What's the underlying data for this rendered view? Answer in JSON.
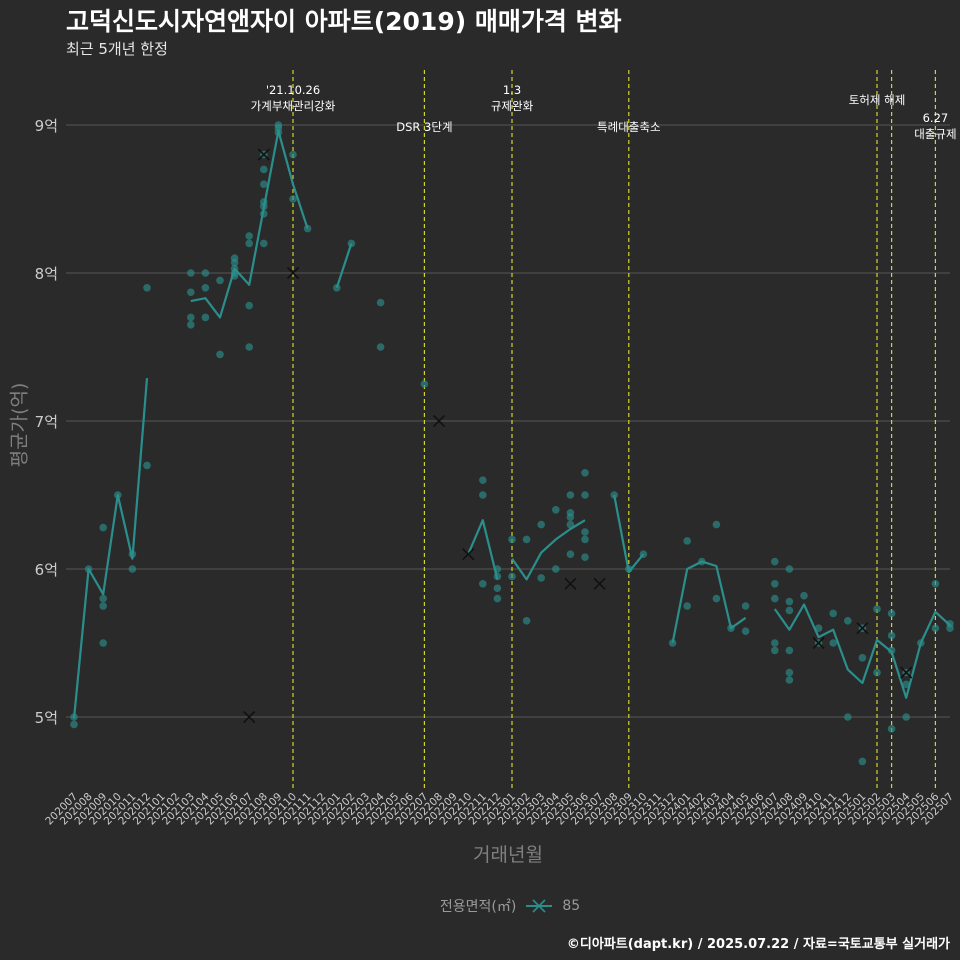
{
  "title": "고덕신도시자연앤자이 아파트(2019) 매매가격 변화",
  "subtitle": "최근 5개년 한정",
  "caption": "©디아파트(dapt.kr) / 2025.07.22 / 자료=국토교통부 실거래가",
  "colors": {
    "background": "#2b2a2a",
    "grid": "#555555",
    "series": "#2a8f8c",
    "vline": "#d4d42a",
    "axis_text": "#cccccc",
    "axis_title": "#7f7f7f"
  },
  "chart_data": {
    "type": "line",
    "title": "고덕신도시자연앤자이 아파트(2019) 매매가격 변화",
    "xlabel": "거래년월",
    "ylabel": "평균가(억)",
    "ylim": [
      4.5,
      9.45
    ],
    "yticks": [
      5,
      6,
      7,
      8,
      9
    ],
    "ytick_labels": [
      "5억",
      "6억",
      "7억",
      "8억",
      "9억"
    ],
    "categories": [
      "202007",
      "202008",
      "202009",
      "202010",
      "202011",
      "202012",
      "202101",
      "202102",
      "202103",
      "202104",
      "202105",
      "202106",
      "202107",
      "202108",
      "202109",
      "202110",
      "202111",
      "202112",
      "202201",
      "202202",
      "202203",
      "202204",
      "202205",
      "202206",
      "202207",
      "202208",
      "202209",
      "202210",
      "202211",
      "202212",
      "202301",
      "202302",
      "202303",
      "202304",
      "202305",
      "202306",
      "202307",
      "202308",
      "202309",
      "202310",
      "202311",
      "202312",
      "202401",
      "202402",
      "202403",
      "202404",
      "202405",
      "202406",
      "202407",
      "202408",
      "202409",
      "202410",
      "202411",
      "202412",
      "202501",
      "202502",
      "202503",
      "202504",
      "202505",
      "202506",
      "202507"
    ],
    "legend": {
      "title": "전용면적(㎡)",
      "entries": [
        "85"
      ]
    },
    "series": [
      {
        "name": "85",
        "line_segments": [
          [
            [
              0,
              4.99
            ],
            [
              1,
              6.0
            ],
            [
              2,
              5.83
            ],
            [
              3,
              6.5
            ],
            [
              4,
              6.07
            ],
            [
              5,
              7.29
            ]
          ],
          [
            [
              8,
              7.81
            ],
            [
              9,
              7.83
            ],
            [
              10,
              7.7
            ],
            [
              11,
              8.03
            ],
            [
              12,
              7.92
            ],
            [
              13,
              8.44
            ],
            [
              14,
              8.96
            ],
            [
              15,
              8.6
            ],
            [
              16,
              8.3
            ]
          ],
          [
            [
              18,
              7.9
            ],
            [
              19,
              8.2
            ]
          ],
          [
            [
              27,
              6.1
            ],
            [
              28,
              6.33
            ],
            [
              29,
              5.93
            ]
          ],
          [
            [
              30,
              6.07
            ],
            [
              31,
              5.93
            ],
            [
              32,
              6.11
            ],
            [
              33,
              6.2
            ],
            [
              34,
              6.27
            ],
            [
              35,
              6.33
            ]
          ],
          [
            [
              37,
              6.5
            ],
            [
              38,
              5.98
            ],
            [
              39,
              6.1
            ]
          ],
          [
            [
              41,
              5.5
            ],
            [
              42,
              6.0
            ],
            [
              43,
              6.05
            ],
            [
              44,
              6.02
            ],
            [
              45,
              5.6
            ],
            [
              46,
              5.67
            ]
          ],
          [
            [
              48,
              5.73
            ],
            [
              49,
              5.59
            ],
            [
              50,
              5.76
            ],
            [
              51,
              5.54
            ],
            [
              52,
              5.59
            ],
            [
              53,
              5.32
            ],
            [
              54,
              5.23
            ],
            [
              55,
              5.52
            ],
            [
              56,
              5.44
            ],
            [
              57,
              5.13
            ],
            [
              58,
              5.5
            ],
            [
              59,
              5.71
            ],
            [
              60,
              5.62
            ]
          ]
        ],
        "points": [
          [
            0,
            5.0
          ],
          [
            0,
            4.95
          ],
          [
            1,
            6.0
          ],
          [
            2,
            5.5
          ],
          [
            2,
            5.75
          ],
          [
            2,
            5.8
          ],
          [
            2,
            6.28
          ],
          [
            3,
            6.5
          ],
          [
            4,
            6.0
          ],
          [
            4,
            6.1
          ],
          [
            5,
            7.9
          ],
          [
            5,
            6.7
          ],
          [
            8,
            8.0
          ],
          [
            8,
            7.87
          ],
          [
            8,
            7.7
          ],
          [
            8,
            7.65
          ],
          [
            9,
            8.0
          ],
          [
            9,
            7.9
          ],
          [
            9,
            7.7
          ],
          [
            10,
            7.45
          ],
          [
            10,
            7.95
          ],
          [
            11,
            8.1
          ],
          [
            11,
            8.07
          ],
          [
            11,
            8.0
          ],
          [
            11,
            8.03
          ],
          [
            11,
            7.98
          ],
          [
            12,
            8.25
          ],
          [
            12,
            8.2
          ],
          [
            12,
            7.78
          ],
          [
            12,
            7.5
          ],
          [
            13,
            8.8
          ],
          [
            13,
            8.7
          ],
          [
            13,
            8.6
          ],
          [
            13,
            8.48
          ],
          [
            13,
            8.45
          ],
          [
            13,
            8.4
          ],
          [
            13,
            8.2
          ],
          [
            14,
            9.0
          ],
          [
            14,
            8.98
          ],
          [
            14,
            8.95
          ],
          [
            15,
            8.8
          ],
          [
            15,
            8.5
          ],
          [
            16,
            8.3
          ],
          [
            18,
            7.9
          ],
          [
            19,
            8.2
          ],
          [
            21,
            7.8
          ],
          [
            21,
            7.5
          ],
          [
            24,
            7.25
          ],
          [
            28,
            6.6
          ],
          [
            28,
            6.5
          ],
          [
            28,
            5.9
          ],
          [
            29,
            6.0
          ],
          [
            29,
            5.95
          ],
          [
            29,
            5.87
          ],
          [
            29,
            5.8
          ],
          [
            30,
            6.2
          ],
          [
            30,
            5.95
          ],
          [
            31,
            6.2
          ],
          [
            31,
            5.65
          ],
          [
            32,
            6.3
          ],
          [
            32,
            5.94
          ],
          [
            33,
            6.4
          ],
          [
            33,
            6.0
          ],
          [
            34,
            6.5
          ],
          [
            34,
            6.38
          ],
          [
            34,
            6.35
          ],
          [
            34,
            6.3
          ],
          [
            34,
            6.1
          ],
          [
            35,
            6.65
          ],
          [
            35,
            6.5
          ],
          [
            35,
            6.25
          ],
          [
            35,
            6.2
          ],
          [
            35,
            6.08
          ],
          [
            37,
            6.5
          ],
          [
            38,
            6.0
          ],
          [
            39,
            6.1
          ],
          [
            41,
            5.5
          ],
          [
            42,
            6.19
          ],
          [
            42,
            5.75
          ],
          [
            43,
            6.05
          ],
          [
            44,
            6.3
          ],
          [
            44,
            5.8
          ],
          [
            45,
            5.6
          ],
          [
            46,
            5.58
          ],
          [
            46,
            5.75
          ],
          [
            48,
            6.05
          ],
          [
            48,
            5.9
          ],
          [
            48,
            5.8
          ],
          [
            48,
            5.5
          ],
          [
            48,
            5.45
          ],
          [
            49,
            6.0
          ],
          [
            49,
            5.78
          ],
          [
            49,
            5.72
          ],
          [
            49,
            5.45
          ],
          [
            49,
            5.3
          ],
          [
            49,
            5.25
          ],
          [
            50,
            5.82
          ],
          [
            51,
            5.6
          ],
          [
            51,
            5.5
          ],
          [
            52,
            5.7
          ],
          [
            52,
            5.5
          ],
          [
            53,
            5.65
          ],
          [
            53,
            5.0
          ],
          [
            54,
            5.6
          ],
          [
            54,
            5.4
          ],
          [
            54,
            4.7
          ],
          [
            55,
            5.73
          ],
          [
            55,
            5.3
          ],
          [
            56,
            5.7
          ],
          [
            56,
            5.55
          ],
          [
            56,
            5.45
          ],
          [
            56,
            4.92
          ],
          [
            57,
            5.3
          ],
          [
            57,
            5.22
          ],
          [
            57,
            5.0
          ],
          [
            58,
            5.5
          ],
          [
            59,
            5.9
          ],
          [
            59,
            5.6
          ],
          [
            60,
            5.63
          ],
          [
            60,
            5.6
          ]
        ],
        "cross_points": [
          [
            12,
            5.0
          ],
          [
            13,
            8.8
          ],
          [
            15,
            8.0
          ],
          [
            25,
            7.0
          ],
          [
            27,
            6.1
          ],
          [
            34,
            5.9
          ],
          [
            36,
            5.9
          ],
          [
            51,
            5.5
          ],
          [
            54,
            5.6
          ],
          [
            57,
            5.3
          ]
        ]
      }
    ],
    "annotations": [
      {
        "x_index": 15,
        "lines": [
          "'21.10.26",
          "가계부채관리강화"
        ],
        "label_level": 0
      },
      {
        "x_index": 24,
        "lines": [
          "DSR 3단계"
        ],
        "label_level": 2
      },
      {
        "x_index": 30,
        "lines": [
          "1.3",
          "규제완화"
        ],
        "label_level": 0
      },
      {
        "x_index": 38,
        "lines": [
          "특례대출축소"
        ],
        "label_level": 2
      },
      {
        "x_index": 55,
        "lines": [
          "토허제 해제"
        ],
        "label_level": 1
      },
      {
        "x_index": 56,
        "lines": [],
        "label_level": 1
      },
      {
        "x_index": 59,
        "lines": [
          "6.27",
          "대출규제"
        ],
        "label_level": 3
      }
    ]
  }
}
